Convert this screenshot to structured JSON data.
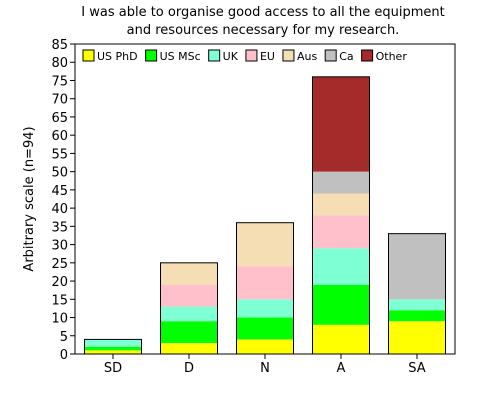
{
  "chart_data": {
    "type": "bar",
    "stacked": true,
    "title": "I was able to organise good access to all the equipment and resources necessary for my research.",
    "title_lines": [
      "I was able to organise good access to all the equipment",
      "and resources necessary for my research."
    ],
    "xlabel": "",
    "ylabel": "Arbitrary scale (n=94)",
    "ylim": [
      0,
      85
    ],
    "yticks": [
      0,
      5,
      10,
      15,
      20,
      25,
      30,
      35,
      40,
      45,
      50,
      55,
      60,
      65,
      70,
      75,
      80,
      85
    ],
    "grid": false,
    "legend_position": "top",
    "categories": [
      "SD",
      "D",
      "N",
      "A",
      "SA"
    ],
    "series": [
      {
        "name": "US PhD",
        "color": "#ffff00",
        "values": [
          1,
          3,
          4,
          8,
          9
        ]
      },
      {
        "name": "US MSc",
        "color": "#00ff00",
        "values": [
          1,
          6,
          6,
          11,
          3
        ]
      },
      {
        "name": "UK",
        "color": "#7fffd4",
        "values": [
          2,
          4,
          5,
          10,
          3
        ]
      },
      {
        "name": "EU",
        "color": "#ffc0cb",
        "values": [
          0,
          6,
          9,
          9,
          0
        ]
      },
      {
        "name": "Aus",
        "color": "#f5deb3",
        "values": [
          0,
          6,
          12,
          6,
          0
        ]
      },
      {
        "name": "Ca",
        "color": "#c0c0c0",
        "values": [
          0,
          0,
          0,
          6,
          18
        ]
      },
      {
        "name": "Other",
        "color": "#a52a2a",
        "values": [
          0,
          0,
          0,
          26,
          0
        ]
      }
    ]
  }
}
